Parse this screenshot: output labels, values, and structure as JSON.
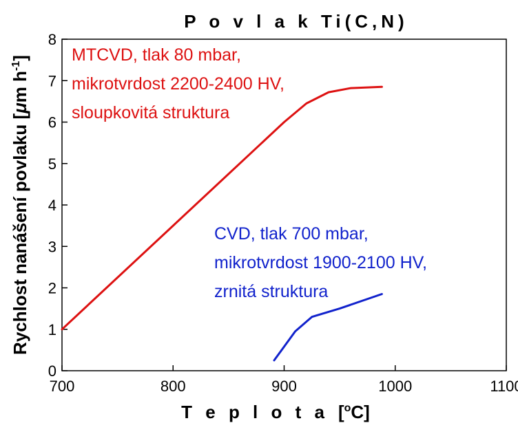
{
  "chart_data": {
    "type": "line",
    "title": "P o v l a k   Ti(C,N)",
    "xlabel_main": "T e p l o t a",
    "xlabel_unit_open": "[",
    "xlabel_unit_sup": "o",
    "xlabel_unit_rest": "C]",
    "ylabel_main": "Rychlost nanášení povlaku [",
    "ylabel_mu": "μ",
    "ylabel_unit": "m h",
    "ylabel_sup": "-1",
    "ylabel_close": "]",
    "xlim": [
      700,
      1100
    ],
    "ylim": [
      0,
      8
    ],
    "x_ticks": [
      "700",
      "800",
      "900",
      "1000",
      "1100"
    ],
    "y_ticks": [
      "0",
      "1",
      "2",
      "3",
      "4",
      "5",
      "6",
      "7",
      "8"
    ],
    "grid": false,
    "series": [
      {
        "color": "#dd1111",
        "x": [
          700,
          800,
          900,
          920,
          940,
          960,
          988
        ],
        "y": [
          1.0,
          3.5,
          6.0,
          6.45,
          6.72,
          6.82,
          6.85
        ]
      },
      {
        "color": "#1122cc",
        "x": [
          891,
          910,
          925,
          950,
          988
        ],
        "y": [
          0.25,
          0.95,
          1.3,
          1.5,
          1.85
        ]
      }
    ],
    "annotations": [
      {
        "color": "#dd1111",
        "lines": [
          "MTCVD, tlak 80 mbar,",
          "mikrotvrdost 2200-2400 HV,",
          "sloupkovitá struktura"
        ]
      },
      {
        "color": "#1122cc",
        "lines": [
          "CVD, tlak 700 mbar,",
          "mikrotvrdost 1900-2100 HV,",
          "zrnitá struktura"
        ]
      }
    ]
  }
}
